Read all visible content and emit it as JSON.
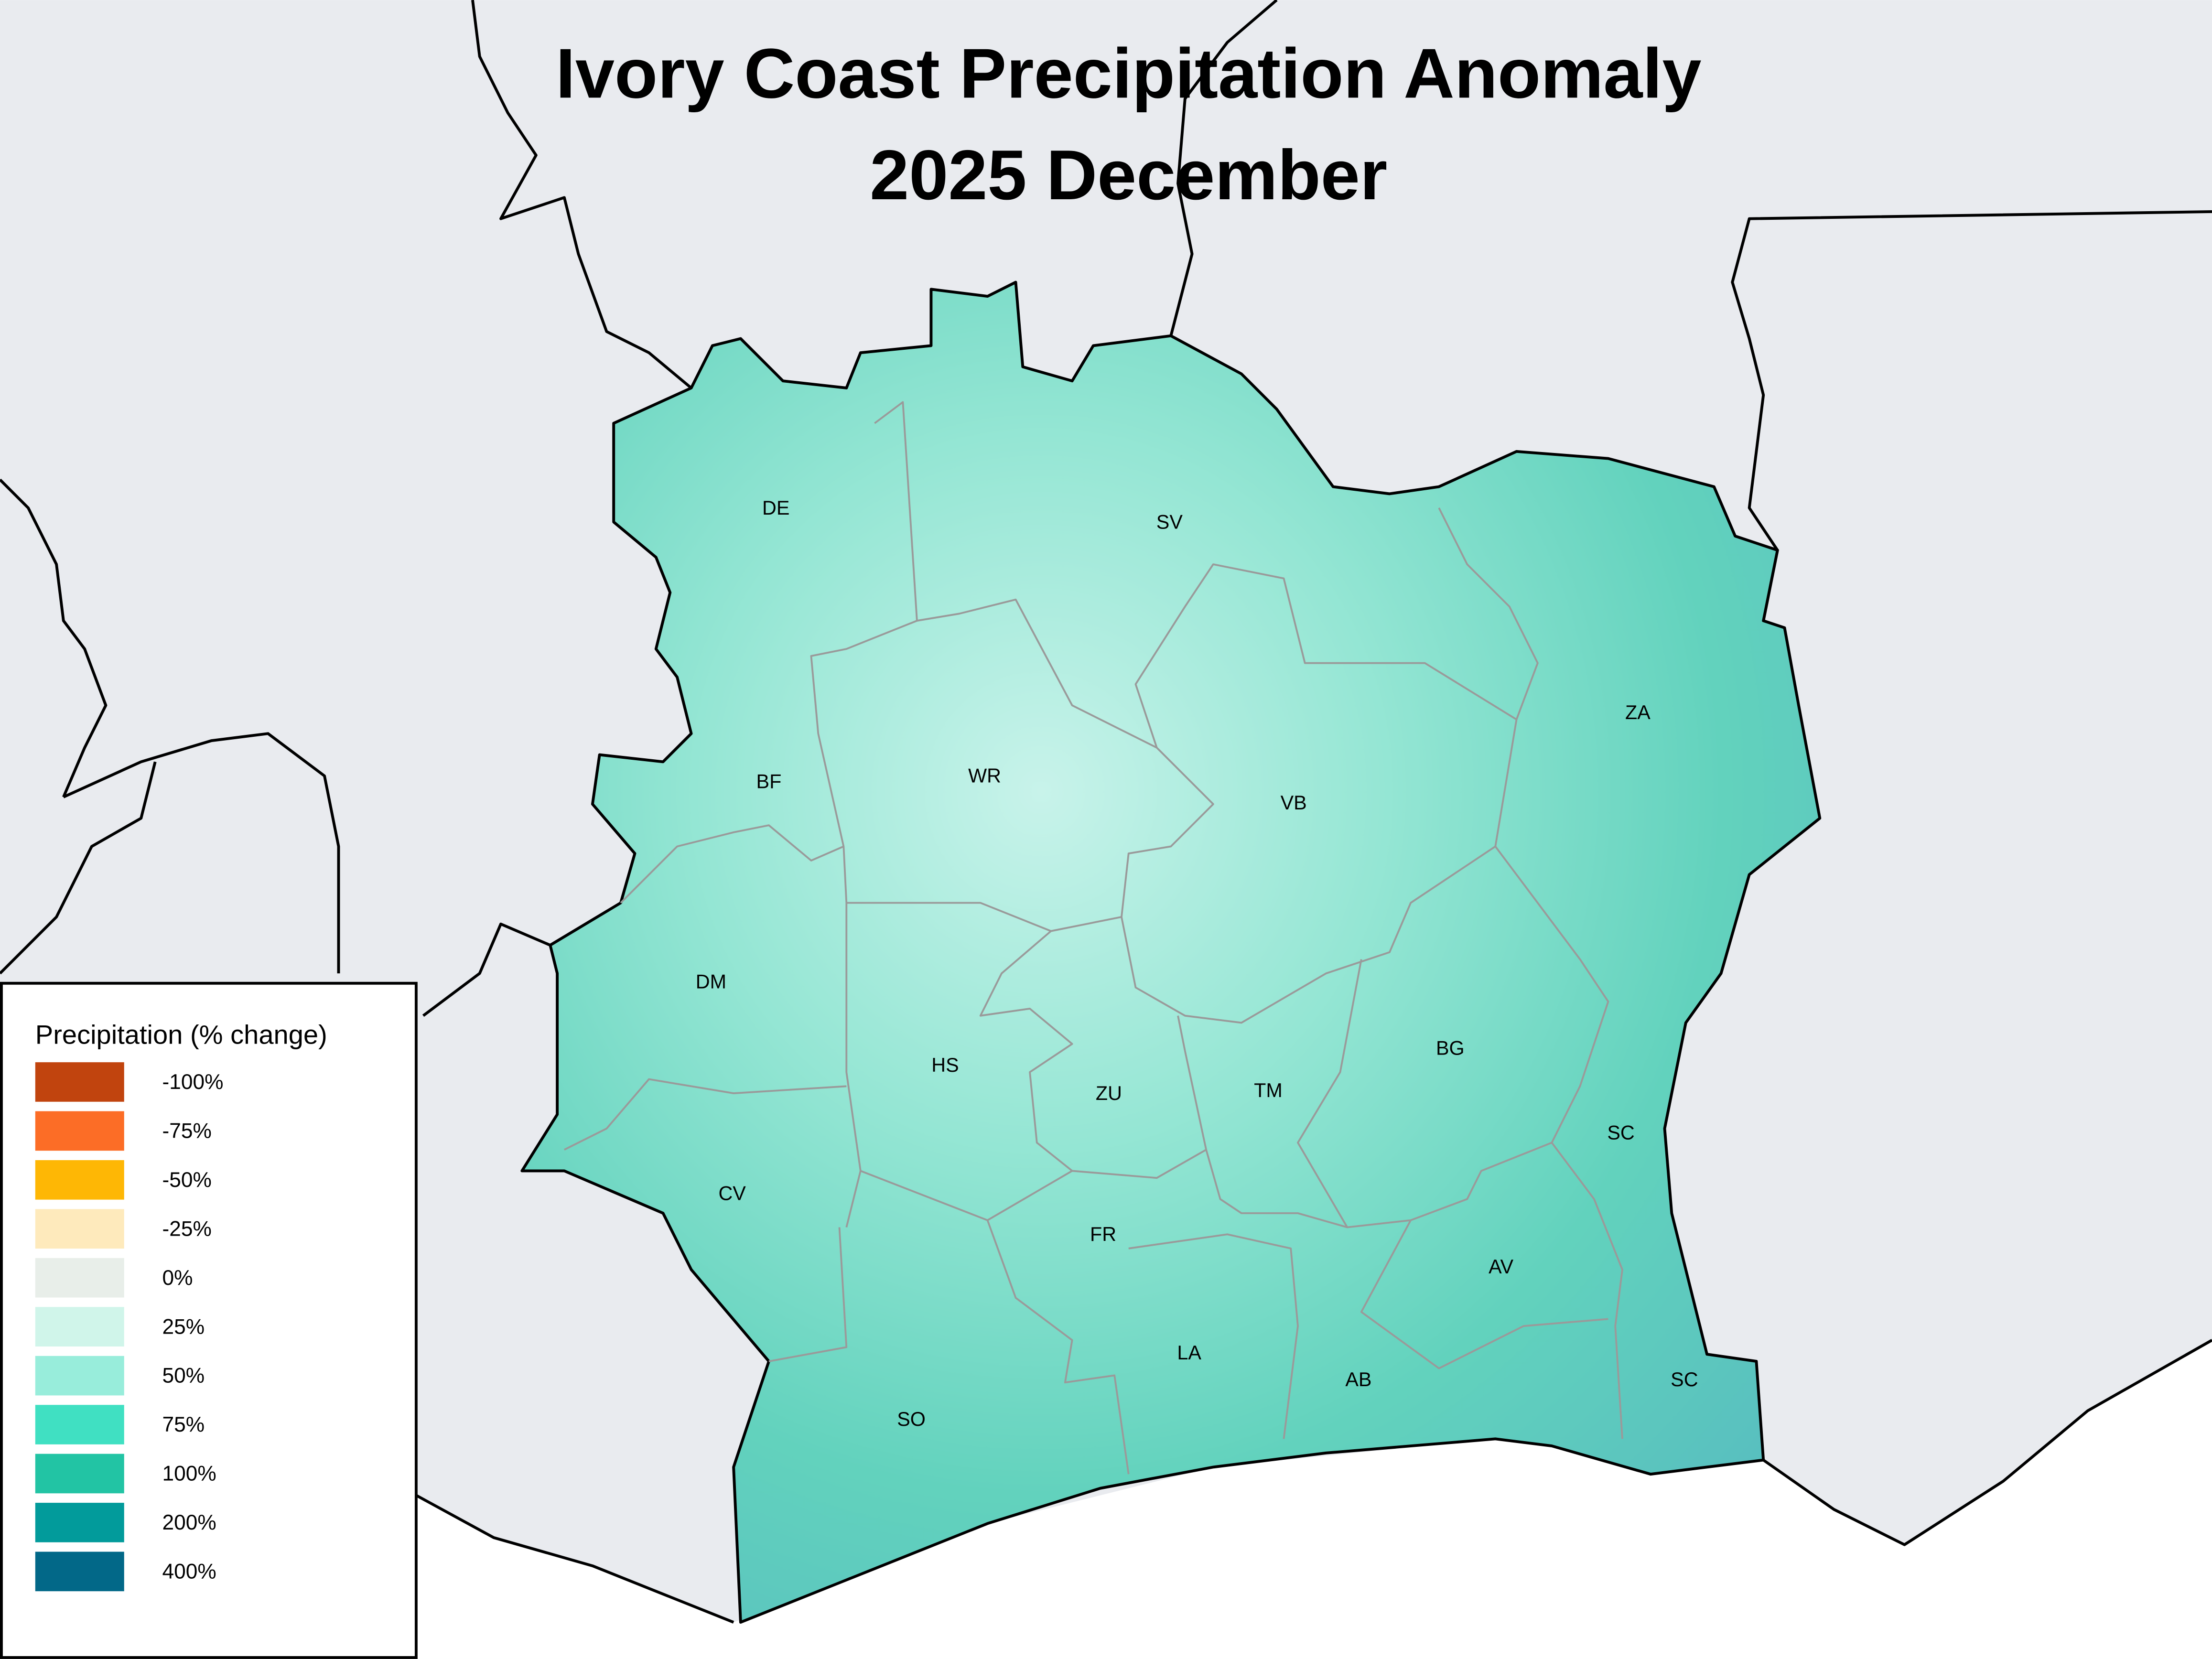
{
  "title": [
    "Ivory Coast Precipitation Anomaly",
    "2025 December"
  ],
  "legend": {
    "title": "Precipitation (% change)",
    "items": [
      {
        "label": "-100%",
        "color": "#c1440e"
      },
      {
        "label": "-75%",
        "color": "#fc6d26"
      },
      {
        "label": "-50%",
        "color": "#feb705"
      },
      {
        "label": "-25%",
        "color": "#feeabc"
      },
      {
        "label": "0%",
        "color": "#e8eee9"
      },
      {
        "label": "25%",
        "color": "#d0f5ea"
      },
      {
        "label": "50%",
        "color": "#98eddb"
      },
      {
        "label": "75%",
        "color": "#40e0c2"
      },
      {
        "label": "100%",
        "color": "#22c4a4"
      },
      {
        "label": "200%",
        "color": "#029b9b"
      },
      {
        "label": "400%",
        "color": "#026888"
      }
    ]
  },
  "regions": [
    "DE",
    "SV",
    "ZA",
    "BF",
    "WR",
    "VB",
    "DM",
    "HS",
    "ZU",
    "TM",
    "BG",
    "SC",
    "CV",
    "FR",
    "AV",
    "LA",
    "AB",
    "SC",
    "SO"
  ]
}
